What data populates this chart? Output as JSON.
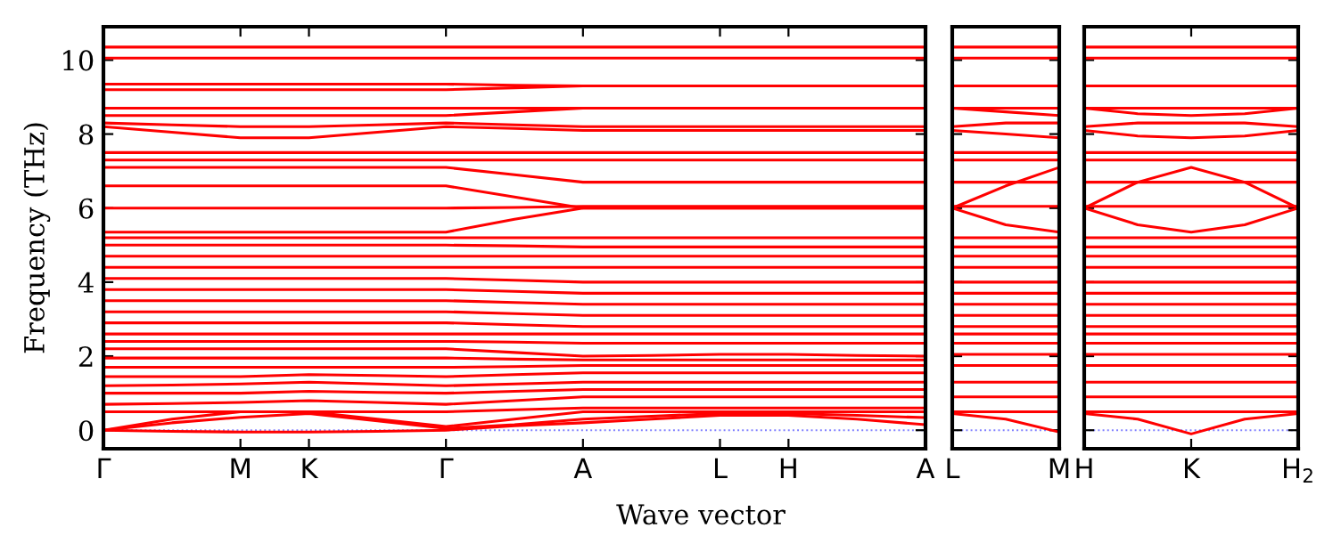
{
  "chart_data": [
    {
      "type": "line",
      "xlabel": "Wave vector",
      "ylabel": "Frequency (THz)",
      "ylim": [
        -0.5,
        10.9
      ],
      "yticks": [
        0,
        2,
        4,
        6,
        8,
        10
      ],
      "categories": [
        "Γ",
        null,
        "M",
        "K",
        null,
        "Γ",
        null,
        "A",
        null,
        "L",
        "H",
        null,
        "A"
      ],
      "ref_lines": [
        {
          "axis": "y",
          "value": 0,
          "label": null,
          "color": "#8080ff",
          "line_style": "dotted"
        }
      ],
      "marker": "none",
      "line_style": "solid",
      "grid": false,
      "legend": false,
      "series": [
        {
          "color": "#ff0000",
          "values": [
            0,
            -0.03,
            -0.05,
            -0.05,
            -0.03,
            0,
            0.12,
            0.2,
            0.3,
            0.4,
            0.4,
            0.3,
            0.15
          ]
        },
        {
          "color": "#ff0000",
          "values": [
            0,
            0.2,
            0.35,
            0.45,
            0.25,
            0.05,
            0.15,
            0.3,
            0.38,
            0.45,
            0.45,
            0.4,
            0.34
          ]
        },
        {
          "color": "#ff0000",
          "values": [
            0,
            0.3,
            0.5,
            0.5,
            0.3,
            0.1,
            0.3,
            0.5,
            0.5,
            0.5,
            0.5,
            0.5,
            0.5
          ]
        },
        {
          "color": "#ff0000",
          "values": [
            0.5,
            0.5,
            0.5,
            0.5,
            0.5,
            0.5,
            0.55,
            0.6,
            0.6,
            0.6,
            0.6,
            0.6,
            0.6
          ]
        },
        {
          "color": "#ff0000",
          "values": [
            0.7,
            0.72,
            0.75,
            0.8,
            0.75,
            0.7,
            0.8,
            0.9,
            0.9,
            0.9,
            0.9,
            0.9,
            0.9
          ]
        },
        {
          "color": "#ff0000",
          "values": [
            1.0,
            1.0,
            1.0,
            1.05,
            1.02,
            1.0,
            1.05,
            1.1,
            1.1,
            1.1,
            1.1,
            1.1,
            1.1
          ]
        },
        {
          "color": "#ff0000",
          "values": [
            1.2,
            1.22,
            1.25,
            1.3,
            1.25,
            1.2,
            1.25,
            1.3,
            1.3,
            1.3,
            1.3,
            1.3,
            1.3
          ]
        },
        {
          "color": "#ff0000",
          "values": [
            1.45,
            1.45,
            1.45,
            1.5,
            1.48,
            1.45,
            1.5,
            1.55,
            1.55,
            1.55,
            1.55,
            1.55,
            1.55
          ]
        },
        {
          "color": "#ff0000",
          "values": [
            1.7,
            1.7,
            1.7,
            1.7,
            1.7,
            1.7,
            1.72,
            1.75,
            1.75,
            1.75,
            1.75,
            1.75,
            1.75
          ]
        },
        {
          "color": "#ff0000",
          "values": [
            1.95,
            1.95,
            1.95,
            1.95,
            1.95,
            1.95,
            1.92,
            1.9,
            1.9,
            1.9,
            1.9,
            1.9,
            1.9
          ]
        },
        {
          "color": "#ff0000",
          "values": [
            2.2,
            2.2,
            2.2,
            2.2,
            2.2,
            2.2,
            2.1,
            2.0,
            2.02,
            2.05,
            2.05,
            2.02,
            2.0
          ]
        },
        {
          "color": "#ff0000",
          "values": [
            2.4,
            2.4,
            2.4,
            2.4,
            2.4,
            2.4,
            2.38,
            2.35,
            2.35,
            2.35,
            2.35,
            2.35,
            2.35
          ]
        },
        {
          "color": "#ff0000",
          "values": [
            2.6,
            2.6,
            2.6,
            2.6,
            2.6,
            2.6,
            2.6,
            2.6,
            2.6,
            2.6,
            2.6,
            2.6,
            2.6
          ]
        },
        {
          "color": "#ff0000",
          "values": [
            2.9,
            2.9,
            2.9,
            2.9,
            2.9,
            2.9,
            2.85,
            2.8,
            2.8,
            2.8,
            2.8,
            2.8,
            2.8
          ]
        },
        {
          "color": "#ff0000",
          "values": [
            3.2,
            3.2,
            3.2,
            3.2,
            3.2,
            3.2,
            3.15,
            3.1,
            3.1,
            3.1,
            3.1,
            3.1,
            3.1
          ]
        },
        {
          "color": "#ff0000",
          "values": [
            3.5,
            3.5,
            3.5,
            3.5,
            3.5,
            3.5,
            3.45,
            3.4,
            3.4,
            3.4,
            3.4,
            3.4,
            3.4
          ]
        },
        {
          "color": "#ff0000",
          "values": [
            3.8,
            3.8,
            3.8,
            3.8,
            3.8,
            3.8,
            3.75,
            3.7,
            3.7,
            3.7,
            3.7,
            3.7,
            3.7
          ]
        },
        {
          "color": "#ff0000",
          "values": [
            4.1,
            4.1,
            4.1,
            4.1,
            4.1,
            4.1,
            4.05,
            4.0,
            4.0,
            4.0,
            4.0,
            4.0,
            4.0
          ]
        },
        {
          "color": "#ff0000",
          "values": [
            4.4,
            4.4,
            4.4,
            4.4,
            4.4,
            4.4,
            4.4,
            4.4,
            4.4,
            4.4,
            4.4,
            4.4,
            4.4
          ]
        },
        {
          "color": "#ff0000",
          "values": [
            4.7,
            4.7,
            4.7,
            4.7,
            4.7,
            4.7,
            4.7,
            4.7,
            4.7,
            4.7,
            4.7,
            4.7,
            4.7
          ]
        },
        {
          "color": "#ff0000",
          "values": [
            5.0,
            5.0,
            5.0,
            5.0,
            5.0,
            5.0,
            4.98,
            4.95,
            4.95,
            4.95,
            4.95,
            4.95,
            4.95
          ]
        },
        {
          "color": "#ff0000",
          "values": [
            5.2,
            5.2,
            5.2,
            5.2,
            5.2,
            5.2,
            5.2,
            5.2,
            5.2,
            5.2,
            5.2,
            5.2,
            5.2
          ]
        },
        {
          "color": "#ff0000",
          "values": [
            5.35,
            5.35,
            5.35,
            5.35,
            5.35,
            5.35,
            5.7,
            6.0,
            6.0,
            6.0,
            6.0,
            6.0,
            6.0
          ]
        },
        {
          "color": "#ff0000",
          "values": [
            6.0,
            6.0,
            6.0,
            6.0,
            6.0,
            6.0,
            6.02,
            6.05,
            6.05,
            6.05,
            6.05,
            6.05,
            6.05
          ]
        },
        {
          "color": "#ff0000",
          "values": [
            6.6,
            6.6,
            6.6,
            6.6,
            6.6,
            6.6,
            6.3,
            6.0,
            6.0,
            6.0,
            6.0,
            6.0,
            6.0
          ]
        },
        {
          "color": "#ff0000",
          "values": [
            7.1,
            7.1,
            7.1,
            7.1,
            7.1,
            7.1,
            6.9,
            6.7,
            6.7,
            6.7,
            6.7,
            6.7,
            6.7
          ]
        },
        {
          "color": "#ff0000",
          "values": [
            7.3,
            7.3,
            7.3,
            7.3,
            7.3,
            7.3,
            7.3,
            7.3,
            7.3,
            7.3,
            7.3,
            7.3,
            7.3
          ]
        },
        {
          "color": "#ff0000",
          "values": [
            7.5,
            7.5,
            7.5,
            7.5,
            7.5,
            7.5,
            7.5,
            7.5,
            7.5,
            7.5,
            7.5,
            7.5,
            7.5
          ]
        },
        {
          "color": "#ff0000",
          "values": [
            8.2,
            8.05,
            7.9,
            7.9,
            8.05,
            8.2,
            8.15,
            8.1,
            8.1,
            8.1,
            8.1,
            8.1,
            8.1
          ]
        },
        {
          "color": "#ff0000",
          "values": [
            8.3,
            8.25,
            8.2,
            8.2,
            8.25,
            8.3,
            8.25,
            8.2,
            8.2,
            8.2,
            8.2,
            8.2,
            8.2
          ]
        },
        {
          "color": "#ff0000",
          "values": [
            8.5,
            8.5,
            8.5,
            8.5,
            8.5,
            8.5,
            8.6,
            8.7,
            8.7,
            8.7,
            8.7,
            8.7,
            8.7
          ]
        },
        {
          "color": "#ff0000",
          "values": [
            8.7,
            8.7,
            8.7,
            8.7,
            8.7,
            8.7,
            8.7,
            8.7,
            8.7,
            8.7,
            8.7,
            8.7,
            8.7
          ]
        },
        {
          "color": "#ff0000",
          "values": [
            9.2,
            9.2,
            9.2,
            9.2,
            9.2,
            9.2,
            9.25,
            9.3,
            9.3,
            9.3,
            9.3,
            9.3,
            9.3
          ]
        },
        {
          "color": "#ff0000",
          "values": [
            9.35,
            9.35,
            9.35,
            9.35,
            9.35,
            9.35,
            9.32,
            9.3,
            9.3,
            9.3,
            9.3,
            9.3,
            9.3
          ]
        },
        {
          "color": "#ff0000",
          "values": [
            10.05,
            10.05,
            10.05,
            10.05,
            10.05,
            10.05,
            10.05,
            10.05,
            10.05,
            10.05,
            10.05,
            10.05,
            10.05
          ]
        },
        {
          "color": "#ff0000",
          "values": [
            10.35,
            10.35,
            10.35,
            10.35,
            10.35,
            10.35,
            10.35,
            10.35,
            10.35,
            10.35,
            10.35,
            10.35,
            10.35
          ]
        }
      ]
    },
    {
      "type": "line",
      "ylim": [
        -0.5,
        10.9
      ],
      "yticks": [
        0,
        2,
        4,
        6,
        8,
        10
      ],
      "tick_labels": "x",
      "categories": [
        "L",
        null,
        "M"
      ],
      "ref_lines": [
        {
          "axis": "y",
          "value": 0,
          "label": null,
          "color": "#8080ff",
          "line_style": "dotted"
        }
      ],
      "marker": "none",
      "line_style": "solid",
      "grid": false,
      "legend": false,
      "series": [
        {
          "color": "#ff0000",
          "values": [
            0.45,
            0.3,
            -0.05
          ]
        },
        {
          "color": "#ff0000",
          "values": [
            0.5,
            0.5,
            0.5
          ]
        },
        {
          "color": "#ff0000",
          "values": [
            0.9,
            0.9,
            0.9
          ]
        },
        {
          "color": "#ff0000",
          "values": [
            1.3,
            1.3,
            1.3
          ]
        },
        {
          "color": "#ff0000",
          "values": [
            1.75,
            1.75,
            1.75
          ]
        },
        {
          "color": "#ff0000",
          "values": [
            2.05,
            2.05,
            2.05
          ]
        },
        {
          "color": "#ff0000",
          "values": [
            2.35,
            2.35,
            2.35
          ]
        },
        {
          "color": "#ff0000",
          "values": [
            2.6,
            2.6,
            2.6
          ]
        },
        {
          "color": "#ff0000",
          "values": [
            2.8,
            2.8,
            2.8
          ]
        },
        {
          "color": "#ff0000",
          "values": [
            3.1,
            3.1,
            3.1
          ]
        },
        {
          "color": "#ff0000",
          "values": [
            3.4,
            3.4,
            3.4
          ]
        },
        {
          "color": "#ff0000",
          "values": [
            3.7,
            3.7,
            3.7
          ]
        },
        {
          "color": "#ff0000",
          "values": [
            4.0,
            4.0,
            4.0
          ]
        },
        {
          "color": "#ff0000",
          "values": [
            4.4,
            4.4,
            4.4
          ]
        },
        {
          "color": "#ff0000",
          "values": [
            4.7,
            4.7,
            4.7
          ]
        },
        {
          "color": "#ff0000",
          "values": [
            4.95,
            4.95,
            4.95
          ]
        },
        {
          "color": "#ff0000",
          "values": [
            5.2,
            5.2,
            5.2
          ]
        },
        {
          "color": "#ff0000",
          "values": [
            6.0,
            5.55,
            5.35
          ]
        },
        {
          "color": "#ff0000",
          "values": [
            6.0,
            6.6,
            7.1
          ]
        },
        {
          "color": "#ff0000",
          "values": [
            6.05,
            6.05,
            6.05
          ]
        },
        {
          "color": "#ff0000",
          "values": [
            6.7,
            6.7,
            6.7
          ]
        },
        {
          "color": "#ff0000",
          "values": [
            7.3,
            7.3,
            7.3
          ]
        },
        {
          "color": "#ff0000",
          "values": [
            7.5,
            7.5,
            7.5
          ]
        },
        {
          "color": "#ff0000",
          "values": [
            8.1,
            8.0,
            7.9
          ]
        },
        {
          "color": "#ff0000",
          "values": [
            8.2,
            8.3,
            8.3
          ]
        },
        {
          "color": "#ff0000",
          "values": [
            8.7,
            8.6,
            8.5
          ]
        },
        {
          "color": "#ff0000",
          "values": [
            8.7,
            8.7,
            8.7
          ]
        },
        {
          "color": "#ff0000",
          "values": [
            9.3,
            9.3,
            9.3
          ]
        },
        {
          "color": "#ff0000",
          "values": [
            10.05,
            10.05,
            10.05
          ]
        },
        {
          "color": "#ff0000",
          "values": [
            10.35,
            10.35,
            10.35
          ]
        }
      ]
    },
    {
      "type": "line",
      "ylim": [
        -0.5,
        10.9
      ],
      "yticks": [
        0,
        2,
        4,
        6,
        8,
        10
      ],
      "tick_labels": "x",
      "categories": [
        "H",
        null,
        "K",
        null,
        "H$_{2}$"
      ],
      "ref_lines": [
        {
          "axis": "y",
          "value": 0,
          "label": null,
          "color": "#8080ff",
          "line_style": "dotted"
        }
      ],
      "marker": "none",
      "line_style": "solid",
      "grid": false,
      "legend": false,
      "series": [
        {
          "color": "#ff0000",
          "values": [
            0.45,
            0.3,
            -0.1,
            0.3,
            0.45
          ]
        },
        {
          "color": "#ff0000",
          "values": [
            0.5,
            0.5,
            0.5,
            0.5,
            0.5
          ]
        },
        {
          "color": "#ff0000",
          "values": [
            0.9,
            0.9,
            0.9,
            0.9,
            0.9
          ]
        },
        {
          "color": "#ff0000",
          "values": [
            1.3,
            1.3,
            1.3,
            1.3,
            1.3
          ]
        },
        {
          "color": "#ff0000",
          "values": [
            1.75,
            1.75,
            1.75,
            1.75,
            1.75
          ]
        },
        {
          "color": "#ff0000",
          "values": [
            2.05,
            2.05,
            2.05,
            2.05,
            2.05
          ]
        },
        {
          "color": "#ff0000",
          "values": [
            2.35,
            2.35,
            2.35,
            2.35,
            2.35
          ]
        },
        {
          "color": "#ff0000",
          "values": [
            2.6,
            2.6,
            2.6,
            2.6,
            2.6
          ]
        },
        {
          "color": "#ff0000",
          "values": [
            2.8,
            2.8,
            2.8,
            2.8,
            2.8
          ]
        },
        {
          "color": "#ff0000",
          "values": [
            3.1,
            3.1,
            3.1,
            3.1,
            3.1
          ]
        },
        {
          "color": "#ff0000",
          "values": [
            3.4,
            3.4,
            3.4,
            3.4,
            3.4
          ]
        },
        {
          "color": "#ff0000",
          "values": [
            3.7,
            3.7,
            3.7,
            3.7,
            3.7
          ]
        },
        {
          "color": "#ff0000",
          "values": [
            4.0,
            4.0,
            4.0,
            4.0,
            4.0
          ]
        },
        {
          "color": "#ff0000",
          "values": [
            4.4,
            4.4,
            4.4,
            4.4,
            4.4
          ]
        },
        {
          "color": "#ff0000",
          "values": [
            4.7,
            4.7,
            4.7,
            4.7,
            4.7
          ]
        },
        {
          "color": "#ff0000",
          "values": [
            4.95,
            4.95,
            4.95,
            4.95,
            4.95
          ]
        },
        {
          "color": "#ff0000",
          "values": [
            5.2,
            5.2,
            5.2,
            5.2,
            5.2
          ]
        },
        {
          "color": "#ff0000",
          "values": [
            6.0,
            5.55,
            5.35,
            5.55,
            6.0
          ]
        },
        {
          "color": "#ff0000",
          "values": [
            6.0,
            6.7,
            7.1,
            6.7,
            6.0
          ]
        },
        {
          "color": "#ff0000",
          "values": [
            6.05,
            6.05,
            6.05,
            6.05,
            6.05
          ]
        },
        {
          "color": "#ff0000",
          "values": [
            6.7,
            6.7,
            6.7,
            6.7,
            6.7
          ]
        },
        {
          "color": "#ff0000",
          "values": [
            7.3,
            7.3,
            7.3,
            7.3,
            7.3
          ]
        },
        {
          "color": "#ff0000",
          "values": [
            7.5,
            7.5,
            7.5,
            7.5,
            7.5
          ]
        },
        {
          "color": "#ff0000",
          "values": [
            8.1,
            7.95,
            7.9,
            7.95,
            8.1
          ]
        },
        {
          "color": "#ff0000",
          "values": [
            8.2,
            8.3,
            8.3,
            8.3,
            8.2
          ]
        },
        {
          "color": "#ff0000",
          "values": [
            8.7,
            8.55,
            8.5,
            8.55,
            8.7
          ]
        },
        {
          "color": "#ff0000",
          "values": [
            8.7,
            8.7,
            8.7,
            8.7,
            8.7
          ]
        },
        {
          "color": "#ff0000",
          "values": [
            9.3,
            9.3,
            9.3,
            9.3,
            9.3
          ]
        },
        {
          "color": "#ff0000",
          "values": [
            10.05,
            10.05,
            10.05,
            10.05,
            10.05
          ]
        },
        {
          "color": "#ff0000",
          "values": [
            10.35,
            10.35,
            10.35,
            10.35,
            10.35
          ]
        }
      ]
    }
  ]
}
